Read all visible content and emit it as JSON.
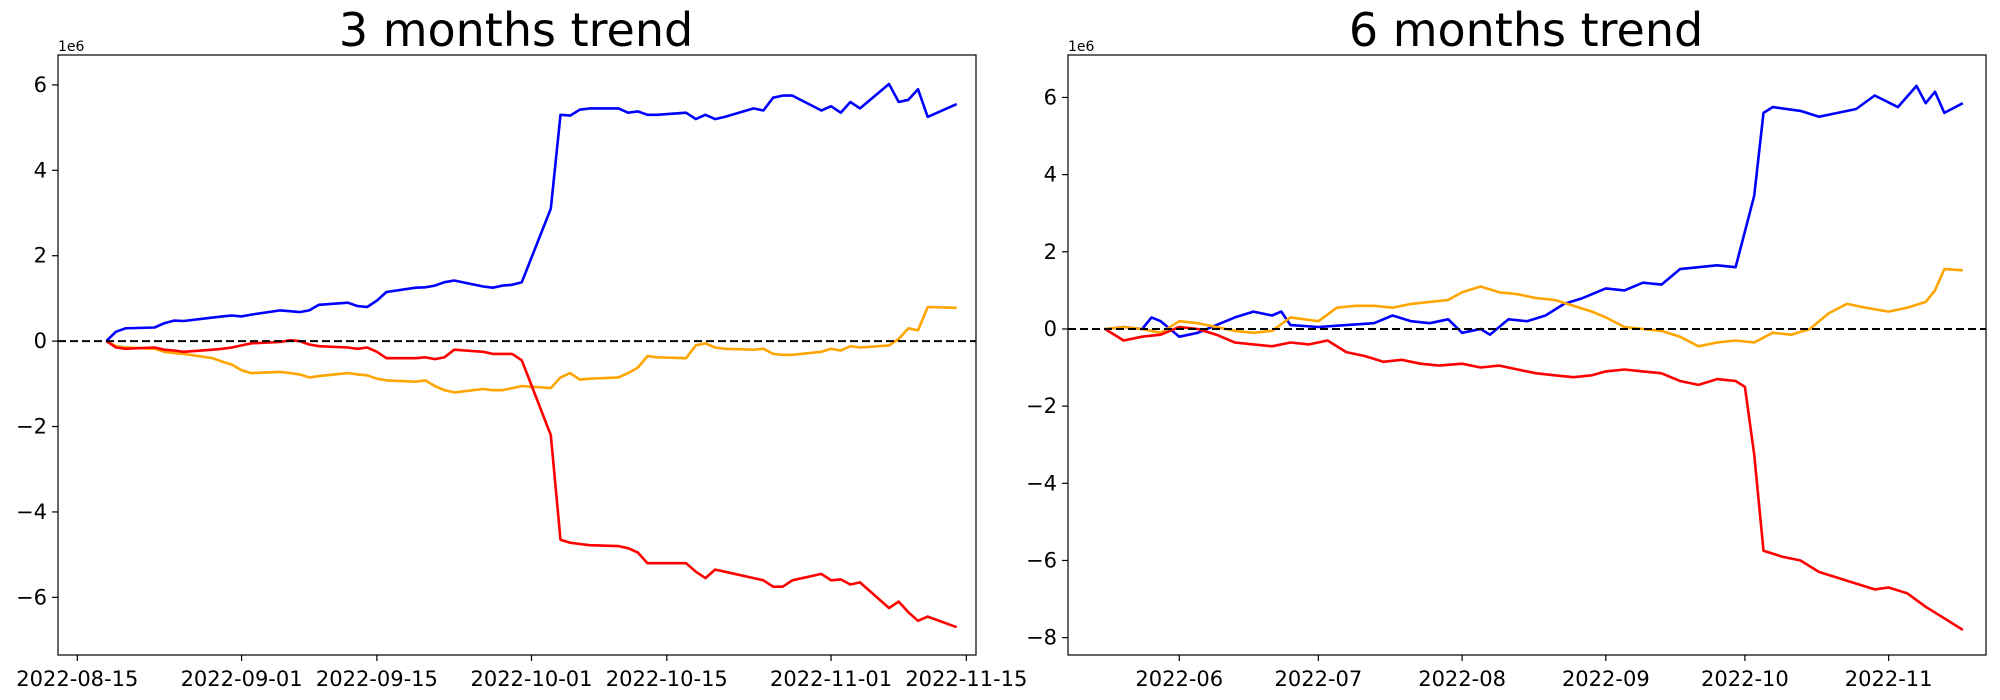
{
  "chart_data": [
    {
      "type": "line",
      "title": "3 months trend",
      "xlabel": "",
      "ylabel": "",
      "x_axis_type": "date",
      "xlim": [
        "2022-08-13",
        "2022-11-16"
      ],
      "ylim": [
        -7.35,
        6.7
      ],
      "y_scale_label": "1e6",
      "x_ticks": [
        {
          "date": "2022-08-15",
          "label": "2022-08-15"
        },
        {
          "date": "2022-09-01",
          "label": "2022-09-01"
        },
        {
          "date": "2022-09-15",
          "label": "2022-09-15"
        },
        {
          "date": "2022-10-01",
          "label": "2022-10-01"
        },
        {
          "date": "2022-10-15",
          "label": "2022-10-15"
        },
        {
          "date": "2022-11-01",
          "label": "2022-11-01"
        },
        {
          "date": "2022-11-15",
          "label": "2022-11-15"
        }
      ],
      "y_ticks": [
        {
          "value": 6,
          "label": "6"
        },
        {
          "value": 4,
          "label": "4"
        },
        {
          "value": 2,
          "label": "2"
        },
        {
          "value": 0,
          "label": "0"
        },
        {
          "value": -2,
          "label": "−2"
        },
        {
          "value": -4,
          "label": "−4"
        },
        {
          "value": -6,
          "label": "−6"
        }
      ],
      "reference_line": {
        "y": 0,
        "style": "dashed",
        "color": "#000000"
      },
      "grid": false,
      "legend": "none",
      "series": [
        {
          "color": "#0000ff",
          "x": [
            "2022-08-18",
            "2022-08-19",
            "2022-08-20",
            "2022-08-23",
            "2022-08-24",
            "2022-08-25",
            "2022-08-26",
            "2022-08-29",
            "2022-08-30",
            "2022-08-31",
            "2022-09-01",
            "2022-09-02",
            "2022-09-05",
            "2022-09-06",
            "2022-09-07",
            "2022-09-08",
            "2022-09-09",
            "2022-09-12",
            "2022-09-13",
            "2022-09-14",
            "2022-09-15",
            "2022-09-16",
            "2022-09-19",
            "2022-09-20",
            "2022-09-21",
            "2022-09-22",
            "2022-09-23",
            "2022-09-26",
            "2022-09-27",
            "2022-09-28",
            "2022-09-29",
            "2022-09-30",
            "2022-10-03",
            "2022-10-04",
            "2022-10-05",
            "2022-10-06",
            "2022-10-07",
            "2022-10-10",
            "2022-10-11",
            "2022-10-12",
            "2022-10-13",
            "2022-10-14",
            "2022-10-17",
            "2022-10-18",
            "2022-10-19",
            "2022-10-20",
            "2022-10-21",
            "2022-10-24",
            "2022-10-25",
            "2022-10-26",
            "2022-10-27",
            "2022-10-28",
            "2022-10-31",
            "2022-11-01",
            "2022-11-02",
            "2022-11-03",
            "2022-11-04",
            "2022-11-07",
            "2022-11-08",
            "2022-11-09",
            "2022-11-10",
            "2022-11-11",
            "2022-11-14"
          ],
          "values": [
            0.0,
            0.22,
            0.3,
            0.32,
            0.42,
            0.48,
            0.47,
            0.55,
            0.58,
            0.6,
            0.58,
            0.62,
            0.72,
            0.7,
            0.68,
            0.72,
            0.85,
            0.9,
            0.82,
            0.8,
            0.95,
            1.15,
            1.25,
            1.26,
            1.3,
            1.38,
            1.42,
            1.28,
            1.25,
            1.3,
            1.32,
            1.38,
            3.1,
            5.3,
            5.28,
            5.42,
            5.45,
            5.45,
            5.35,
            5.38,
            5.3,
            5.3,
            5.35,
            5.2,
            5.3,
            5.2,
            5.25,
            5.45,
            5.4,
            5.7,
            5.75,
            5.75,
            5.4,
            5.5,
            5.35,
            5.6,
            5.45,
            6.02,
            5.6,
            5.65,
            5.9,
            5.25,
            5.55
          ]
        },
        {
          "color": "#ffa500",
          "x": [
            "2022-08-18",
            "2022-08-19",
            "2022-08-20",
            "2022-08-23",
            "2022-08-24",
            "2022-08-25",
            "2022-08-26",
            "2022-08-29",
            "2022-08-30",
            "2022-08-31",
            "2022-09-01",
            "2022-09-02",
            "2022-09-05",
            "2022-09-06",
            "2022-09-07",
            "2022-09-08",
            "2022-09-09",
            "2022-09-12",
            "2022-09-13",
            "2022-09-14",
            "2022-09-15",
            "2022-09-16",
            "2022-09-19",
            "2022-09-20",
            "2022-09-21",
            "2022-09-22",
            "2022-09-23",
            "2022-09-26",
            "2022-09-27",
            "2022-09-28",
            "2022-09-29",
            "2022-09-30",
            "2022-10-03",
            "2022-10-04",
            "2022-10-05",
            "2022-10-06",
            "2022-10-07",
            "2022-10-10",
            "2022-10-11",
            "2022-10-12",
            "2022-10-13",
            "2022-10-14",
            "2022-10-17",
            "2022-10-18",
            "2022-10-19",
            "2022-10-20",
            "2022-10-21",
            "2022-10-24",
            "2022-10-25",
            "2022-10-26",
            "2022-10-27",
            "2022-10-28",
            "2022-10-31",
            "2022-11-01",
            "2022-11-02",
            "2022-11-03",
            "2022-11-04",
            "2022-11-07",
            "2022-11-08",
            "2022-11-09",
            "2022-11-10",
            "2022-11-11",
            "2022-11-14"
          ],
          "values": [
            0.0,
            -0.12,
            -0.15,
            -0.18,
            -0.25,
            -0.28,
            -0.3,
            -0.4,
            -0.48,
            -0.55,
            -0.68,
            -0.75,
            -0.72,
            -0.75,
            -0.78,
            -0.85,
            -0.82,
            -0.75,
            -0.78,
            -0.8,
            -0.88,
            -0.92,
            -0.95,
            -0.92,
            -1.05,
            -1.15,
            -1.2,
            -1.12,
            -1.15,
            -1.15,
            -1.1,
            -1.05,
            -1.1,
            -0.85,
            -0.75,
            -0.9,
            -0.88,
            -0.85,
            -0.75,
            -0.62,
            -0.35,
            -0.38,
            -0.4,
            -0.1,
            -0.05,
            -0.15,
            -0.18,
            -0.2,
            -0.18,
            -0.3,
            -0.32,
            -0.32,
            -0.25,
            -0.18,
            -0.22,
            -0.12,
            -0.15,
            -0.1,
            0.05,
            0.3,
            0.25,
            0.8,
            0.78
          ]
        },
        {
          "color": "#ff0000",
          "x": [
            "2022-08-18",
            "2022-08-19",
            "2022-08-20",
            "2022-08-23",
            "2022-08-24",
            "2022-08-25",
            "2022-08-26",
            "2022-08-29",
            "2022-08-30",
            "2022-08-31",
            "2022-09-01",
            "2022-09-02",
            "2022-09-05",
            "2022-09-06",
            "2022-09-07",
            "2022-09-08",
            "2022-09-09",
            "2022-09-12",
            "2022-09-13",
            "2022-09-14",
            "2022-09-15",
            "2022-09-16",
            "2022-09-19",
            "2022-09-20",
            "2022-09-21",
            "2022-09-22",
            "2022-09-23",
            "2022-09-26",
            "2022-09-27",
            "2022-09-28",
            "2022-09-29",
            "2022-09-30",
            "2022-10-03",
            "2022-10-04",
            "2022-10-05",
            "2022-10-06",
            "2022-10-07",
            "2022-10-10",
            "2022-10-11",
            "2022-10-12",
            "2022-10-13",
            "2022-10-14",
            "2022-10-17",
            "2022-10-18",
            "2022-10-19",
            "2022-10-20",
            "2022-10-21",
            "2022-10-24",
            "2022-10-25",
            "2022-10-26",
            "2022-10-27",
            "2022-10-28",
            "2022-10-31",
            "2022-11-01",
            "2022-11-02",
            "2022-11-03",
            "2022-11-04",
            "2022-11-07",
            "2022-11-08",
            "2022-11-09",
            "2022-11-10",
            "2022-11-11",
            "2022-11-14"
          ],
          "values": [
            0.0,
            -0.15,
            -0.18,
            -0.15,
            -0.2,
            -0.22,
            -0.25,
            -0.2,
            -0.18,
            -0.15,
            -0.1,
            -0.05,
            -0.02,
            0.02,
            0.0,
            -0.08,
            -0.12,
            -0.15,
            -0.18,
            -0.15,
            -0.25,
            -0.4,
            -0.4,
            -0.38,
            -0.42,
            -0.38,
            -0.2,
            -0.25,
            -0.3,
            -0.3,
            -0.3,
            -0.45,
            -2.2,
            -4.65,
            -4.72,
            -4.75,
            -4.78,
            -4.8,
            -4.85,
            -4.95,
            -5.2,
            -5.2,
            -5.2,
            -5.4,
            -5.55,
            -5.35,
            -5.4,
            -5.55,
            -5.6,
            -5.75,
            -5.75,
            -5.6,
            -5.45,
            -5.6,
            -5.58,
            -5.7,
            -5.65,
            -6.25,
            -6.1,
            -6.35,
            -6.55,
            -6.45,
            -6.7
          ]
        }
      ]
    },
    {
      "type": "line",
      "title": "6 months trend",
      "xlabel": "",
      "ylabel": "",
      "x_axis_type": "date",
      "xlim": [
        "2022-05-08",
        "2022-11-22"
      ],
      "ylim": [
        -8.45,
        7.1
      ],
      "y_scale_label": "1e6",
      "x_ticks": [
        {
          "date": "2022-06-01",
          "label": "2022-06"
        },
        {
          "date": "2022-07-01",
          "label": "2022-07"
        },
        {
          "date": "2022-08-01",
          "label": "2022-08"
        },
        {
          "date": "2022-09-01",
          "label": "2022-09"
        },
        {
          "date": "2022-10-01",
          "label": "2022-10"
        },
        {
          "date": "2022-11-01",
          "label": "2022-11"
        }
      ],
      "y_ticks": [
        {
          "value": 6,
          "label": "6"
        },
        {
          "value": 4,
          "label": "4"
        },
        {
          "value": 2,
          "label": "2"
        },
        {
          "value": 0,
          "label": "0"
        },
        {
          "value": -2,
          "label": "−2"
        },
        {
          "value": -4,
          "label": "−4"
        },
        {
          "value": -6,
          "label": "−6"
        },
        {
          "value": -8,
          "label": "−8"
        }
      ],
      "reference_line": {
        "y": 0,
        "style": "dashed",
        "color": "#000000"
      },
      "grid": false,
      "legend": "none",
      "series": [
        {
          "color": "#0000ff",
          "x": [
            "2022-05-16",
            "2022-05-20",
            "2022-05-24",
            "2022-05-26",
            "2022-05-28",
            "2022-06-01",
            "2022-06-05",
            "2022-06-09",
            "2022-06-13",
            "2022-06-17",
            "2022-06-21",
            "2022-06-23",
            "2022-06-25",
            "2022-07-01",
            "2022-07-07",
            "2022-07-13",
            "2022-07-17",
            "2022-07-21",
            "2022-07-25",
            "2022-07-29",
            "2022-08-01",
            "2022-08-05",
            "2022-08-07",
            "2022-08-11",
            "2022-08-15",
            "2022-08-19",
            "2022-08-23",
            "2022-08-27",
            "2022-09-01",
            "2022-09-05",
            "2022-09-09",
            "2022-09-13",
            "2022-09-17",
            "2022-09-21",
            "2022-09-25",
            "2022-09-29",
            "2022-10-03",
            "2022-10-05",
            "2022-10-07",
            "2022-10-13",
            "2022-10-17",
            "2022-10-21",
            "2022-10-25",
            "2022-10-29",
            "2022-11-03",
            "2022-11-07",
            "2022-11-09",
            "2022-11-11",
            "2022-11-13",
            "2022-11-17"
          ],
          "values": [
            0.0,
            0.05,
            0.0,
            0.3,
            0.2,
            -0.2,
            -0.1,
            0.1,
            0.3,
            0.45,
            0.35,
            0.45,
            0.1,
            0.05,
            0.1,
            0.15,
            0.35,
            0.2,
            0.15,
            0.25,
            -0.1,
            0.0,
            -0.15,
            0.25,
            0.2,
            0.35,
            0.65,
            0.8,
            1.05,
            1.0,
            1.2,
            1.15,
            1.55,
            1.6,
            1.65,
            1.6,
            3.45,
            5.6,
            5.75,
            5.65,
            5.5,
            5.6,
            5.7,
            6.05,
            5.75,
            6.3,
            5.85,
            6.15,
            5.6,
            5.85
          ]
        },
        {
          "color": "#ffa500",
          "x": [
            "2022-05-16",
            "2022-05-20",
            "2022-05-24",
            "2022-05-28",
            "2022-06-01",
            "2022-06-05",
            "2022-06-09",
            "2022-06-13",
            "2022-06-17",
            "2022-06-21",
            "2022-06-25",
            "2022-07-01",
            "2022-07-05",
            "2022-07-09",
            "2022-07-13",
            "2022-07-17",
            "2022-07-21",
            "2022-07-25",
            "2022-07-29",
            "2022-08-01",
            "2022-08-05",
            "2022-08-09",
            "2022-08-13",
            "2022-08-17",
            "2022-08-21",
            "2022-08-25",
            "2022-08-29",
            "2022-09-01",
            "2022-09-05",
            "2022-09-09",
            "2022-09-13",
            "2022-09-17",
            "2022-09-21",
            "2022-09-25",
            "2022-09-29",
            "2022-10-03",
            "2022-10-07",
            "2022-10-11",
            "2022-10-15",
            "2022-10-19",
            "2022-10-23",
            "2022-10-27",
            "2022-11-01",
            "2022-11-05",
            "2022-11-09",
            "2022-11-11",
            "2022-11-13",
            "2022-11-17"
          ],
          "values": [
            0.0,
            0.05,
            0.0,
            -0.1,
            0.2,
            0.15,
            0.05,
            -0.05,
            -0.1,
            -0.05,
            0.3,
            0.2,
            0.55,
            0.6,
            0.6,
            0.55,
            0.65,
            0.7,
            0.75,
            0.95,
            1.1,
            0.95,
            0.9,
            0.8,
            0.75,
            0.6,
            0.45,
            0.3,
            0.05,
            0.0,
            -0.05,
            -0.2,
            -0.45,
            -0.35,
            -0.3,
            -0.35,
            -0.1,
            -0.15,
            0.0,
            0.4,
            0.65,
            0.55,
            0.45,
            0.55,
            0.7,
            1.0,
            1.55,
            1.52
          ]
        },
        {
          "color": "#ff0000",
          "x": [
            "2022-05-16",
            "2022-05-20",
            "2022-05-24",
            "2022-05-28",
            "2022-06-01",
            "2022-06-05",
            "2022-06-09",
            "2022-06-13",
            "2022-06-17",
            "2022-06-21",
            "2022-06-25",
            "2022-06-29",
            "2022-07-03",
            "2022-07-07",
            "2022-07-11",
            "2022-07-15",
            "2022-07-19",
            "2022-07-23",
            "2022-07-27",
            "2022-08-01",
            "2022-08-05",
            "2022-08-09",
            "2022-08-13",
            "2022-08-17",
            "2022-08-21",
            "2022-08-25",
            "2022-08-29",
            "2022-09-01",
            "2022-09-05",
            "2022-09-09",
            "2022-09-13",
            "2022-09-17",
            "2022-09-21",
            "2022-09-25",
            "2022-09-29",
            "2022-10-01",
            "2022-10-03",
            "2022-10-05",
            "2022-10-09",
            "2022-10-13",
            "2022-10-17",
            "2022-10-21",
            "2022-10-25",
            "2022-10-29",
            "2022-11-01",
            "2022-11-05",
            "2022-11-09",
            "2022-11-13",
            "2022-11-17"
          ],
          "values": [
            0.0,
            -0.3,
            -0.2,
            -0.15,
            0.05,
            0.0,
            -0.15,
            -0.35,
            -0.4,
            -0.45,
            -0.35,
            -0.4,
            -0.3,
            -0.6,
            -0.7,
            -0.85,
            -0.8,
            -0.9,
            -0.95,
            -0.9,
            -1.0,
            -0.95,
            -1.05,
            -1.15,
            -1.2,
            -1.25,
            -1.2,
            -1.1,
            -1.05,
            -1.1,
            -1.15,
            -1.35,
            -1.45,
            -1.3,
            -1.35,
            -1.5,
            -3.25,
            -5.75,
            -5.9,
            -6.0,
            -6.3,
            -6.45,
            -6.6,
            -6.75,
            -6.7,
            -6.85,
            -7.2,
            -7.5,
            -7.8
          ]
        }
      ]
    }
  ]
}
